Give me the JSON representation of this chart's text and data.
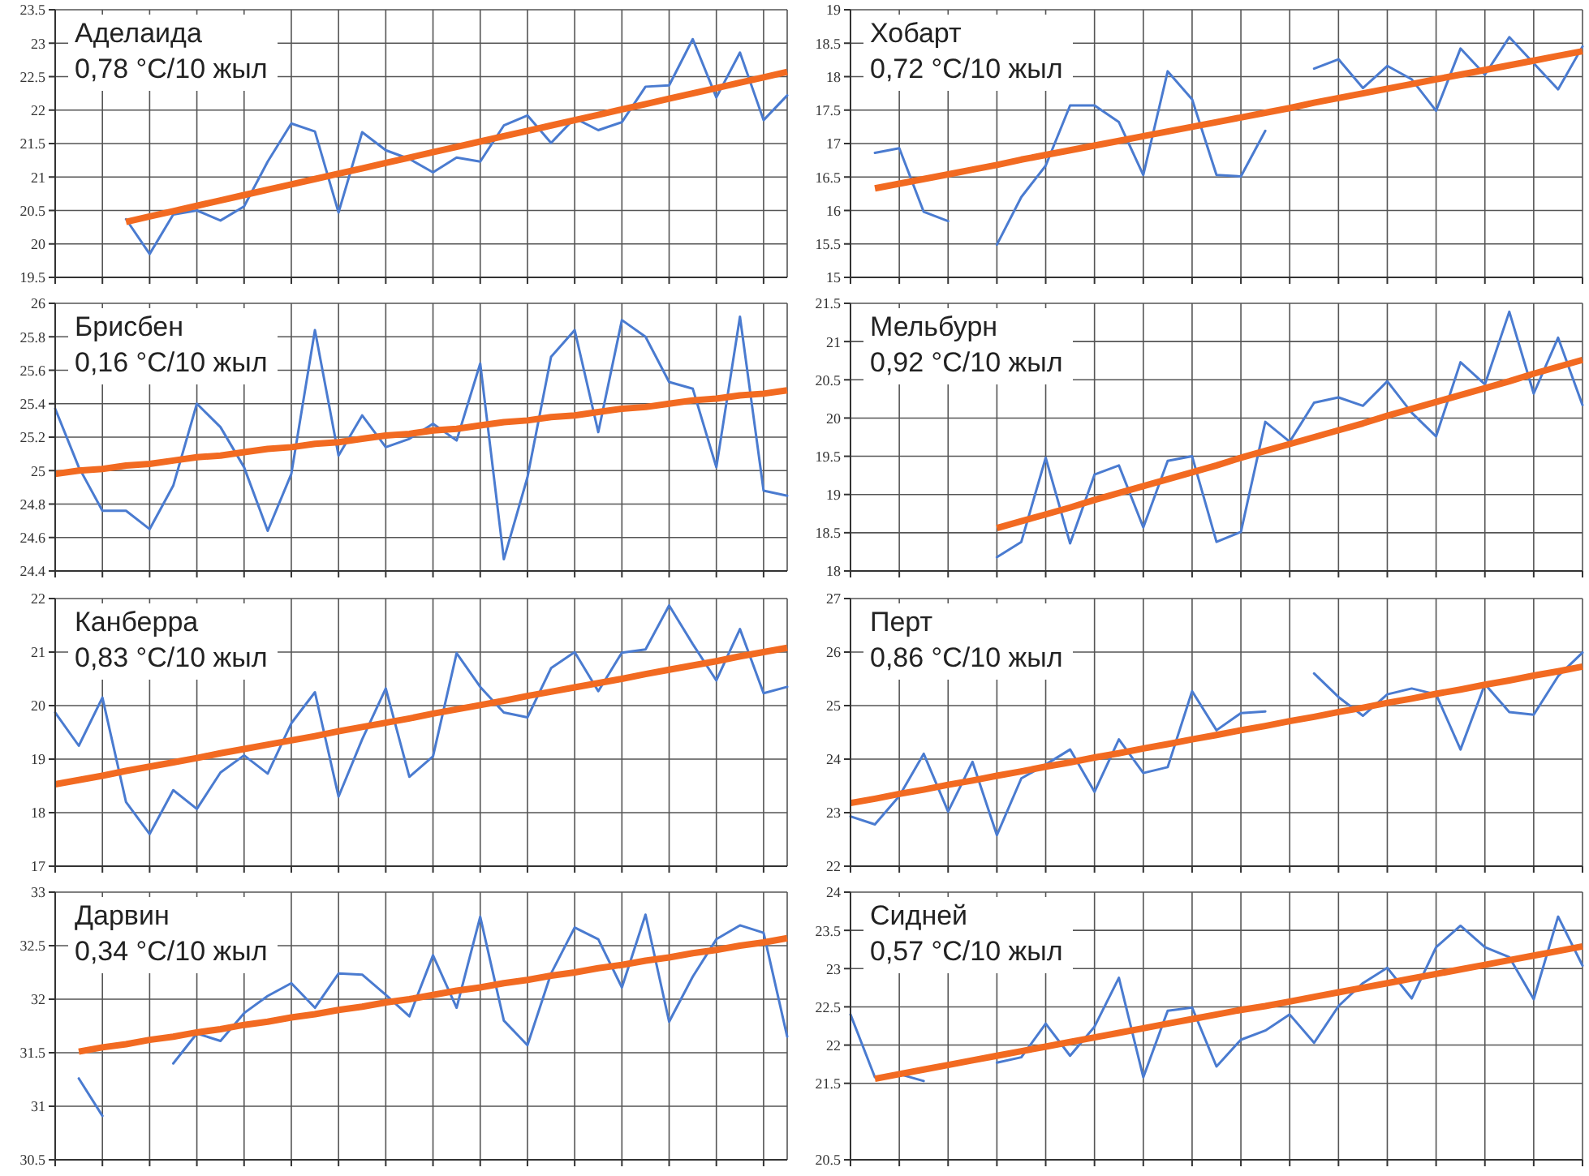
{
  "chart_data": [
    {
      "type": "line",
      "title": "Аделаида",
      "subtitle": "0,78 °C/10 жыл",
      "categories": [
        null,
        null,
        null,
        null,
        null,
        null,
        null,
        null,
        null,
        null,
        null,
        null,
        null,
        null,
        null,
        null,
        null,
        null,
        null,
        null,
        null,
        null,
        null,
        null,
        null,
        null,
        null,
        null,
        null,
        null,
        null,
        null
      ],
      "ylim": [
        19.5,
        23.5
      ],
      "yticks": [
        19.5,
        20,
        20.5,
        21,
        21.5,
        22,
        22.5,
        23,
        23.5
      ],
      "grid": true,
      "series": [
        {
          "color": "#4a7bd0",
          "values": [
            null,
            null,
            null,
            20.37,
            19.85,
            20.44,
            20.5,
            20.35,
            20.56,
            21.23,
            21.8,
            21.68,
            20.47,
            21.67,
            21.4,
            21.27,
            21.07,
            21.29,
            21.23,
            21.77,
            21.92,
            21.51,
            21.88,
            21.7,
            21.82,
            22.35,
            22.37,
            23.06,
            22.19,
            22.86,
            21.85,
            22.22
          ]
        },
        {
          "type": "line",
          "color": "#f26a21",
          "values": [
            null,
            null,
            null,
            20.33,
            20.41,
            20.49,
            20.57,
            20.65,
            20.73,
            20.81,
            20.89,
            20.97,
            21.05,
            21.13,
            21.21,
            21.29,
            21.37,
            21.45,
            21.53,
            21.61,
            21.69,
            21.77,
            21.85,
            21.93,
            22.01,
            22.09,
            22.17,
            22.25,
            22.33,
            22.41,
            22.49,
            22.57
          ]
        }
      ]
    },
    {
      "type": "line",
      "title": "Хобарт",
      "subtitle": "0,72 °C/10 жыл",
      "categories": [
        null,
        null,
        null,
        null,
        null,
        null,
        null,
        null,
        null,
        null,
        null,
        null,
        null,
        null,
        null,
        null,
        null,
        null,
        null,
        null,
        null,
        null,
        null,
        null,
        null,
        null,
        null,
        null,
        null,
        null,
        null
      ],
      "ylim": [
        15,
        19
      ],
      "yticks": [
        15,
        15.5,
        16,
        16.5,
        17,
        17.5,
        18,
        18.5,
        19
      ],
      "grid": true,
      "series": [
        {
          "color": "#4a7bd0",
          "values": [
            null,
            16.86,
            16.93,
            15.98,
            15.84,
            null,
            15.49,
            16.2,
            16.67,
            17.57,
            17.57,
            17.32,
            16.53,
            18.08,
            17.66,
            16.53,
            16.51,
            17.19,
            null,
            18.12,
            18.26,
            17.83,
            18.16,
            17.96,
            17.49,
            18.42,
            18.03,
            18.59,
            18.2,
            17.81,
            18.45
          ]
        },
        {
          "type": "line",
          "color": "#f26a21",
          "values": [
            null,
            16.33,
            16.4,
            16.47,
            16.54,
            16.61,
            16.68,
            16.76,
            16.83,
            16.9,
            16.97,
            17.04,
            17.11,
            17.18,
            17.25,
            17.32,
            17.39,
            17.46,
            17.53,
            17.61,
            17.68,
            17.75,
            17.82,
            17.89,
            17.96,
            18.03,
            18.1,
            18.17,
            18.24,
            18.31,
            18.38
          ]
        }
      ]
    },
    {
      "type": "line",
      "title": "Брисбен",
      "subtitle": "0,16 °C/10 жыл",
      "categories": [
        null,
        null,
        null,
        null,
        null,
        null,
        null,
        null,
        null,
        null,
        null,
        null,
        null,
        null,
        null,
        null,
        null,
        null,
        null,
        null,
        null,
        null,
        null,
        null,
        null,
        null,
        null,
        null,
        null,
        null,
        null,
        null
      ],
      "ylim": [
        24.4,
        26
      ],
      "yticks": [
        24.4,
        24.6,
        24.8,
        25,
        25.2,
        25.4,
        25.6,
        25.8,
        26
      ],
      "grid": true,
      "series": [
        {
          "color": "#4a7bd0",
          "values": [
            25.37,
            25.02,
            24.76,
            24.76,
            24.65,
            24.91,
            25.4,
            25.26,
            25.02,
            24.64,
            24.98,
            25.84,
            25.09,
            25.33,
            25.14,
            25.19,
            25.28,
            25.18,
            25.64,
            24.47,
            24.96,
            25.68,
            25.84,
            25.23,
            25.9,
            25.8,
            25.53,
            25.49,
            25.02,
            25.92,
            24.88,
            24.85
          ]
        },
        {
          "type": "line",
          "color": "#f26a21",
          "values": [
            24.98,
            25.0,
            25.01,
            25.03,
            25.04,
            25.06,
            25.08,
            25.09,
            25.11,
            25.13,
            25.14,
            25.16,
            25.17,
            25.19,
            25.21,
            25.22,
            25.24,
            25.25,
            25.27,
            25.29,
            25.3,
            25.32,
            25.33,
            25.35,
            25.37,
            25.38,
            25.4,
            25.42,
            25.43,
            25.45,
            25.46,
            25.48
          ]
        }
      ]
    },
    {
      "type": "line",
      "title": "Мельбурн",
      "subtitle": "0,92 °C/10 жыл",
      "categories": [
        null,
        null,
        null,
        null,
        null,
        null,
        null,
        null,
        null,
        null,
        null,
        null,
        null,
        null,
        null,
        null,
        null,
        null,
        null,
        null,
        null,
        null,
        null,
        null,
        null,
        null,
        null,
        null,
        null,
        null,
        null
      ],
      "ylim": [
        18,
        21.5
      ],
      "yticks": [
        18,
        18.5,
        19,
        19.5,
        20,
        20.5,
        21,
        21.5
      ],
      "grid": true,
      "series": [
        {
          "color": "#4a7bd0",
          "values": [
            null,
            null,
            null,
            null,
            null,
            null,
            18.18,
            18.38,
            19.48,
            18.36,
            19.26,
            19.38,
            18.57,
            19.44,
            19.5,
            18.38,
            18.51,
            19.95,
            19.69,
            20.2,
            20.27,
            20.16,
            20.48,
            20.07,
            19.76,
            20.73,
            20.44,
            21.39,
            20.32,
            21.05,
            20.17
          ]
        },
        {
          "type": "line",
          "color": "#f26a21",
          "values": [
            null,
            null,
            null,
            null,
            null,
            null,
            18.56,
            18.65,
            18.74,
            18.83,
            18.93,
            19.02,
            19.11,
            19.2,
            19.29,
            19.38,
            19.48,
            19.57,
            19.66,
            19.75,
            19.84,
            19.93,
            20.03,
            20.12,
            20.21,
            20.3,
            20.39,
            20.48,
            20.58,
            20.67,
            20.76
          ]
        }
      ]
    },
    {
      "type": "line",
      "title": "Канберра",
      "subtitle": "0,83 °C/10 жыл",
      "categories": [
        null,
        null,
        null,
        null,
        null,
        null,
        null,
        null,
        null,
        null,
        null,
        null,
        null,
        null,
        null,
        null,
        null,
        null,
        null,
        null,
        null,
        null,
        null,
        null,
        null,
        null,
        null,
        null,
        null,
        null,
        null,
        null
      ],
      "ylim": [
        17,
        22
      ],
      "yticks": [
        17,
        18,
        19,
        20,
        21,
        22
      ],
      "grid": true,
      "series": [
        {
          "color": "#4a7bd0",
          "values": [
            19.87,
            19.25,
            20.15,
            18.2,
            17.6,
            18.42,
            18.07,
            18.75,
            19.07,
            18.73,
            19.67,
            20.25,
            18.3,
            19.37,
            20.32,
            18.67,
            19.05,
            20.98,
            20.35,
            19.87,
            19.78,
            20.7,
            21.0,
            20.27,
            20.99,
            21.05,
            21.87,
            21.15,
            20.47,
            21.43,
            20.23,
            20.35
          ]
        },
        {
          "type": "line",
          "color": "#f26a21",
          "values": [
            18.53,
            18.61,
            18.69,
            18.78,
            18.86,
            18.94,
            19.02,
            19.11,
            19.19,
            19.27,
            19.35,
            19.43,
            19.52,
            19.6,
            19.68,
            19.76,
            19.85,
            19.93,
            20.01,
            20.09,
            20.18,
            20.26,
            20.34,
            20.42,
            20.5,
            20.59,
            20.67,
            20.75,
            20.83,
            20.92,
            21.0,
            21.08
          ]
        }
      ]
    },
    {
      "type": "line",
      "title": "Перт",
      "subtitle": "0,86 °C/10 жыл",
      "categories": [
        null,
        null,
        null,
        null,
        null,
        null,
        null,
        null,
        null,
        null,
        null,
        null,
        null,
        null,
        null,
        null,
        null,
        null,
        null,
        null,
        null,
        null,
        null,
        null,
        null,
        null,
        null,
        null,
        null,
        null,
        null
      ],
      "ylim": [
        22,
        27
      ],
      "yticks": [
        22,
        23,
        24,
        25,
        26,
        27
      ],
      "grid": true,
      "series": [
        {
          "color": "#4a7bd0",
          "values": [
            22.93,
            22.78,
            23.31,
            24.1,
            23.02,
            23.95,
            22.58,
            23.64,
            23.9,
            24.18,
            23.39,
            24.37,
            23.74,
            23.85,
            25.27,
            24.54,
            24.86,
            24.89,
            null,
            25.6,
            25.16,
            24.81,
            25.21,
            25.32,
            25.21,
            24.18,
            25.4,
            24.88,
            24.83,
            25.55,
            25.99
          ]
        },
        {
          "type": "line",
          "color": "#f26a21",
          "values": [
            23.18,
            23.26,
            23.35,
            23.43,
            23.52,
            23.6,
            23.69,
            23.77,
            23.86,
            23.94,
            24.03,
            24.11,
            24.2,
            24.28,
            24.37,
            24.45,
            24.54,
            24.62,
            24.71,
            24.79,
            24.88,
            24.96,
            25.05,
            25.13,
            25.22,
            25.3,
            25.39,
            25.47,
            25.56,
            25.64,
            25.73
          ]
        }
      ]
    },
    {
      "type": "line",
      "title": "Дарвин",
      "subtitle": "0,34 °C/10 жыл",
      "categories": [
        null,
        null,
        null,
        null,
        null,
        null,
        null,
        null,
        null,
        null,
        null,
        null,
        null,
        null,
        null,
        null,
        null,
        null,
        null,
        null,
        null,
        null,
        null,
        null,
        null,
        null,
        null,
        null,
        null,
        null,
        null,
        null
      ],
      "ylim": [
        30.5,
        33
      ],
      "yticks": [
        30.5,
        31,
        31.5,
        32,
        32.5,
        33
      ],
      "grid": true,
      "series": [
        {
          "color": "#4a7bd0",
          "values": [
            null,
            31.26,
            30.91,
            null,
            null,
            31.4,
            31.68,
            31.61,
            31.87,
            32.03,
            32.15,
            31.92,
            32.24,
            32.23,
            32.04,
            31.84,
            32.41,
            31.92,
            32.77,
            31.8,
            31.57,
            32.24,
            32.67,
            32.56,
            32.11,
            32.79,
            31.79,
            32.21,
            32.56,
            32.69,
            32.62,
            31.65
          ]
        },
        {
          "type": "line",
          "color": "#f26a21",
          "values": [
            null,
            31.51,
            31.55,
            31.58,
            31.62,
            31.65,
            31.69,
            31.72,
            31.76,
            31.79,
            31.83,
            31.86,
            31.9,
            31.93,
            31.97,
            32.0,
            32.04,
            32.08,
            32.11,
            32.15,
            32.18,
            32.22,
            32.25,
            32.29,
            32.32,
            32.36,
            32.39,
            32.43,
            32.46,
            32.5,
            32.53,
            32.57
          ]
        }
      ]
    },
    {
      "type": "line",
      "title": "Сидней",
      "subtitle": "0,57 °C/10 жыл",
      "categories": [
        null,
        null,
        null,
        null,
        null,
        null,
        null,
        null,
        null,
        null,
        null,
        null,
        null,
        null,
        null,
        null,
        null,
        null,
        null,
        null,
        null,
        null,
        null,
        null,
        null,
        null,
        null,
        null,
        null,
        null,
        null
      ],
      "ylim": [
        20.5,
        24
      ],
      "yticks": [
        20.5,
        21.5,
        22,
        22.5,
        23,
        23.5,
        24
      ],
      "grid": true,
      "series": [
        {
          "color": "#4a7bd0",
          "values": [
            22.4,
            21.58,
            21.62,
            21.53,
            null,
            null,
            21.77,
            21.84,
            22.28,
            21.86,
            22.24,
            22.88,
            21.58,
            22.45,
            22.49,
            21.72,
            22.07,
            22.19,
            22.4,
            22.03,
            22.51,
            22.81,
            23.01,
            22.61,
            23.28,
            23.56,
            23.28,
            23.15,
            22.6,
            23.68,
            23.04
          ]
        },
        {
          "type": "line",
          "color": "#f26a21",
          "values": [
            null,
            21.56,
            21.62,
            21.68,
            21.74,
            21.8,
            21.86,
            21.92,
            21.98,
            22.04,
            22.1,
            22.16,
            22.22,
            22.28,
            22.34,
            22.4,
            22.46,
            22.51,
            22.57,
            22.63,
            22.69,
            22.75,
            22.81,
            22.87,
            22.93,
            22.99,
            23.05,
            23.11,
            23.17,
            23.23,
            23.29
          ]
        }
      ]
    }
  ]
}
